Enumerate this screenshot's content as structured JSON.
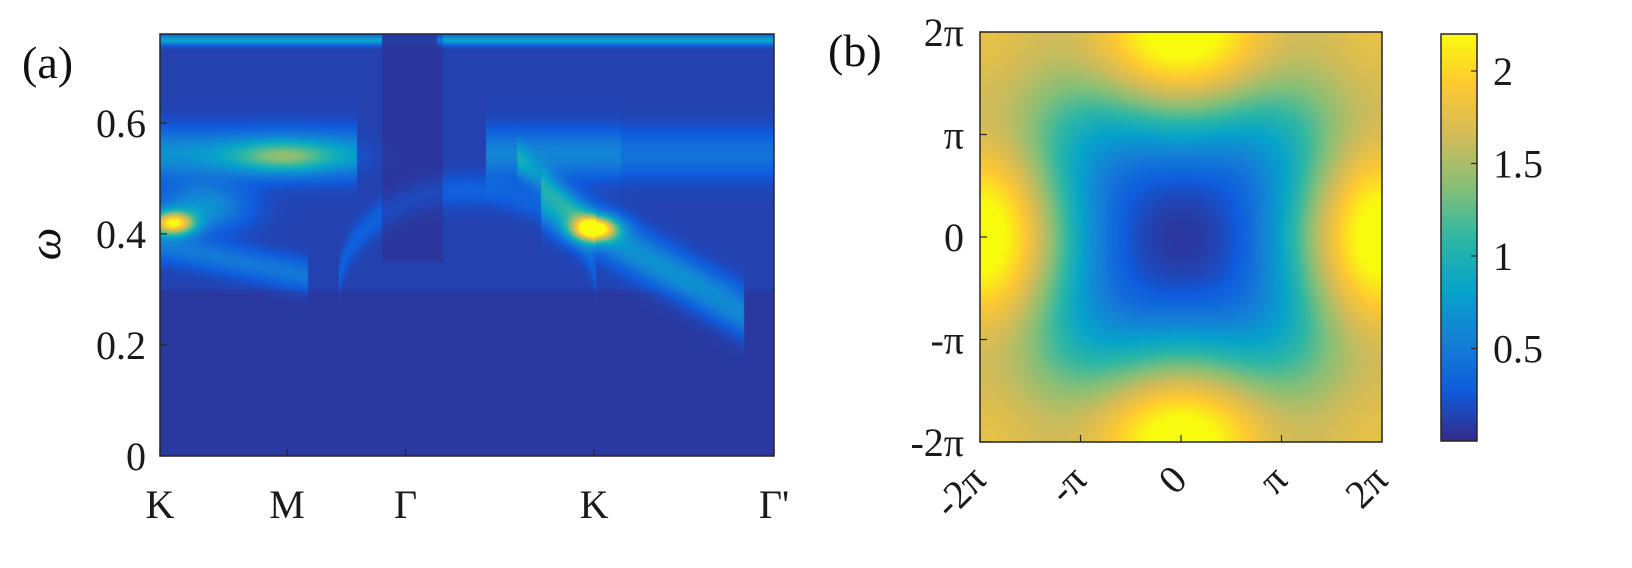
{
  "colors": {
    "parula": [
      "#352a87",
      "#0f5cdd",
      "#1481d6",
      "#06a4ca",
      "#2eb7a4",
      "#87bf77",
      "#d1bb59",
      "#fec832",
      "#f9fb0e"
    ]
  },
  "chart_data": [
    {
      "type": "heatmap",
      "panel_label": "(a)",
      "ylabel": "ω",
      "xlabel": "",
      "ylim": [
        0,
        0.76
      ],
      "y_ticks": [
        {
          "value": 0,
          "label": "0"
        },
        {
          "value": 0.2,
          "label": "0.2"
        },
        {
          "value": 0.4,
          "label": "0.4"
        },
        {
          "value": 0.6,
          "label": "0.6"
        }
      ],
      "x_ticks": [
        {
          "pos": 0.0,
          "label": "K"
        },
        {
          "pos": 0.207,
          "label": "M"
        },
        {
          "pos": 0.4,
          "label": "Γ"
        },
        {
          "pos": 0.707,
          "label": "K"
        },
        {
          "pos": 1.0,
          "label": "Γ'"
        }
      ],
      "features": {
        "flat_band": {
          "y": 0.54,
          "segments": [
            [
              0.0,
              0.32
            ],
            [
              0.53,
              1.0
            ]
          ]
        },
        "peaks": [
          {
            "x": 0.02,
            "y": 0.42,
            "z": 2.1
          },
          {
            "x": 0.707,
            "y": 0.41,
            "z": 2.1
          },
          {
            "x": 0.2,
            "y": 0.54,
            "z": 1.6
          }
        ],
        "top_band": {
          "y": 0.75
        }
      }
    },
    {
      "type": "heatmap",
      "panel_label": "(b)",
      "xlim": [
        -6.283,
        6.283
      ],
      "ylim": [
        -6.283,
        6.283
      ],
      "x_ticks": [
        "-2π",
        "-π",
        "0",
        "π",
        "2π"
      ],
      "y_ticks": [
        "2π",
        "π",
        "0",
        "-π",
        "-2π"
      ],
      "colorbar": {
        "range": [
          0,
          2.2
        ],
        "ticks": [
          {
            "value": 0.5,
            "label": "0.5"
          },
          {
            "value": 1,
            "label": "1"
          },
          {
            "value": 1.5,
            "label": "1.5"
          },
          {
            "value": 2,
            "label": "2"
          }
        ]
      },
      "function": "sqrt(2 - cos(kx) - cos(ky)) weighted, max at (±2π,0),(0,±2π); min at (0,0)"
    }
  ]
}
